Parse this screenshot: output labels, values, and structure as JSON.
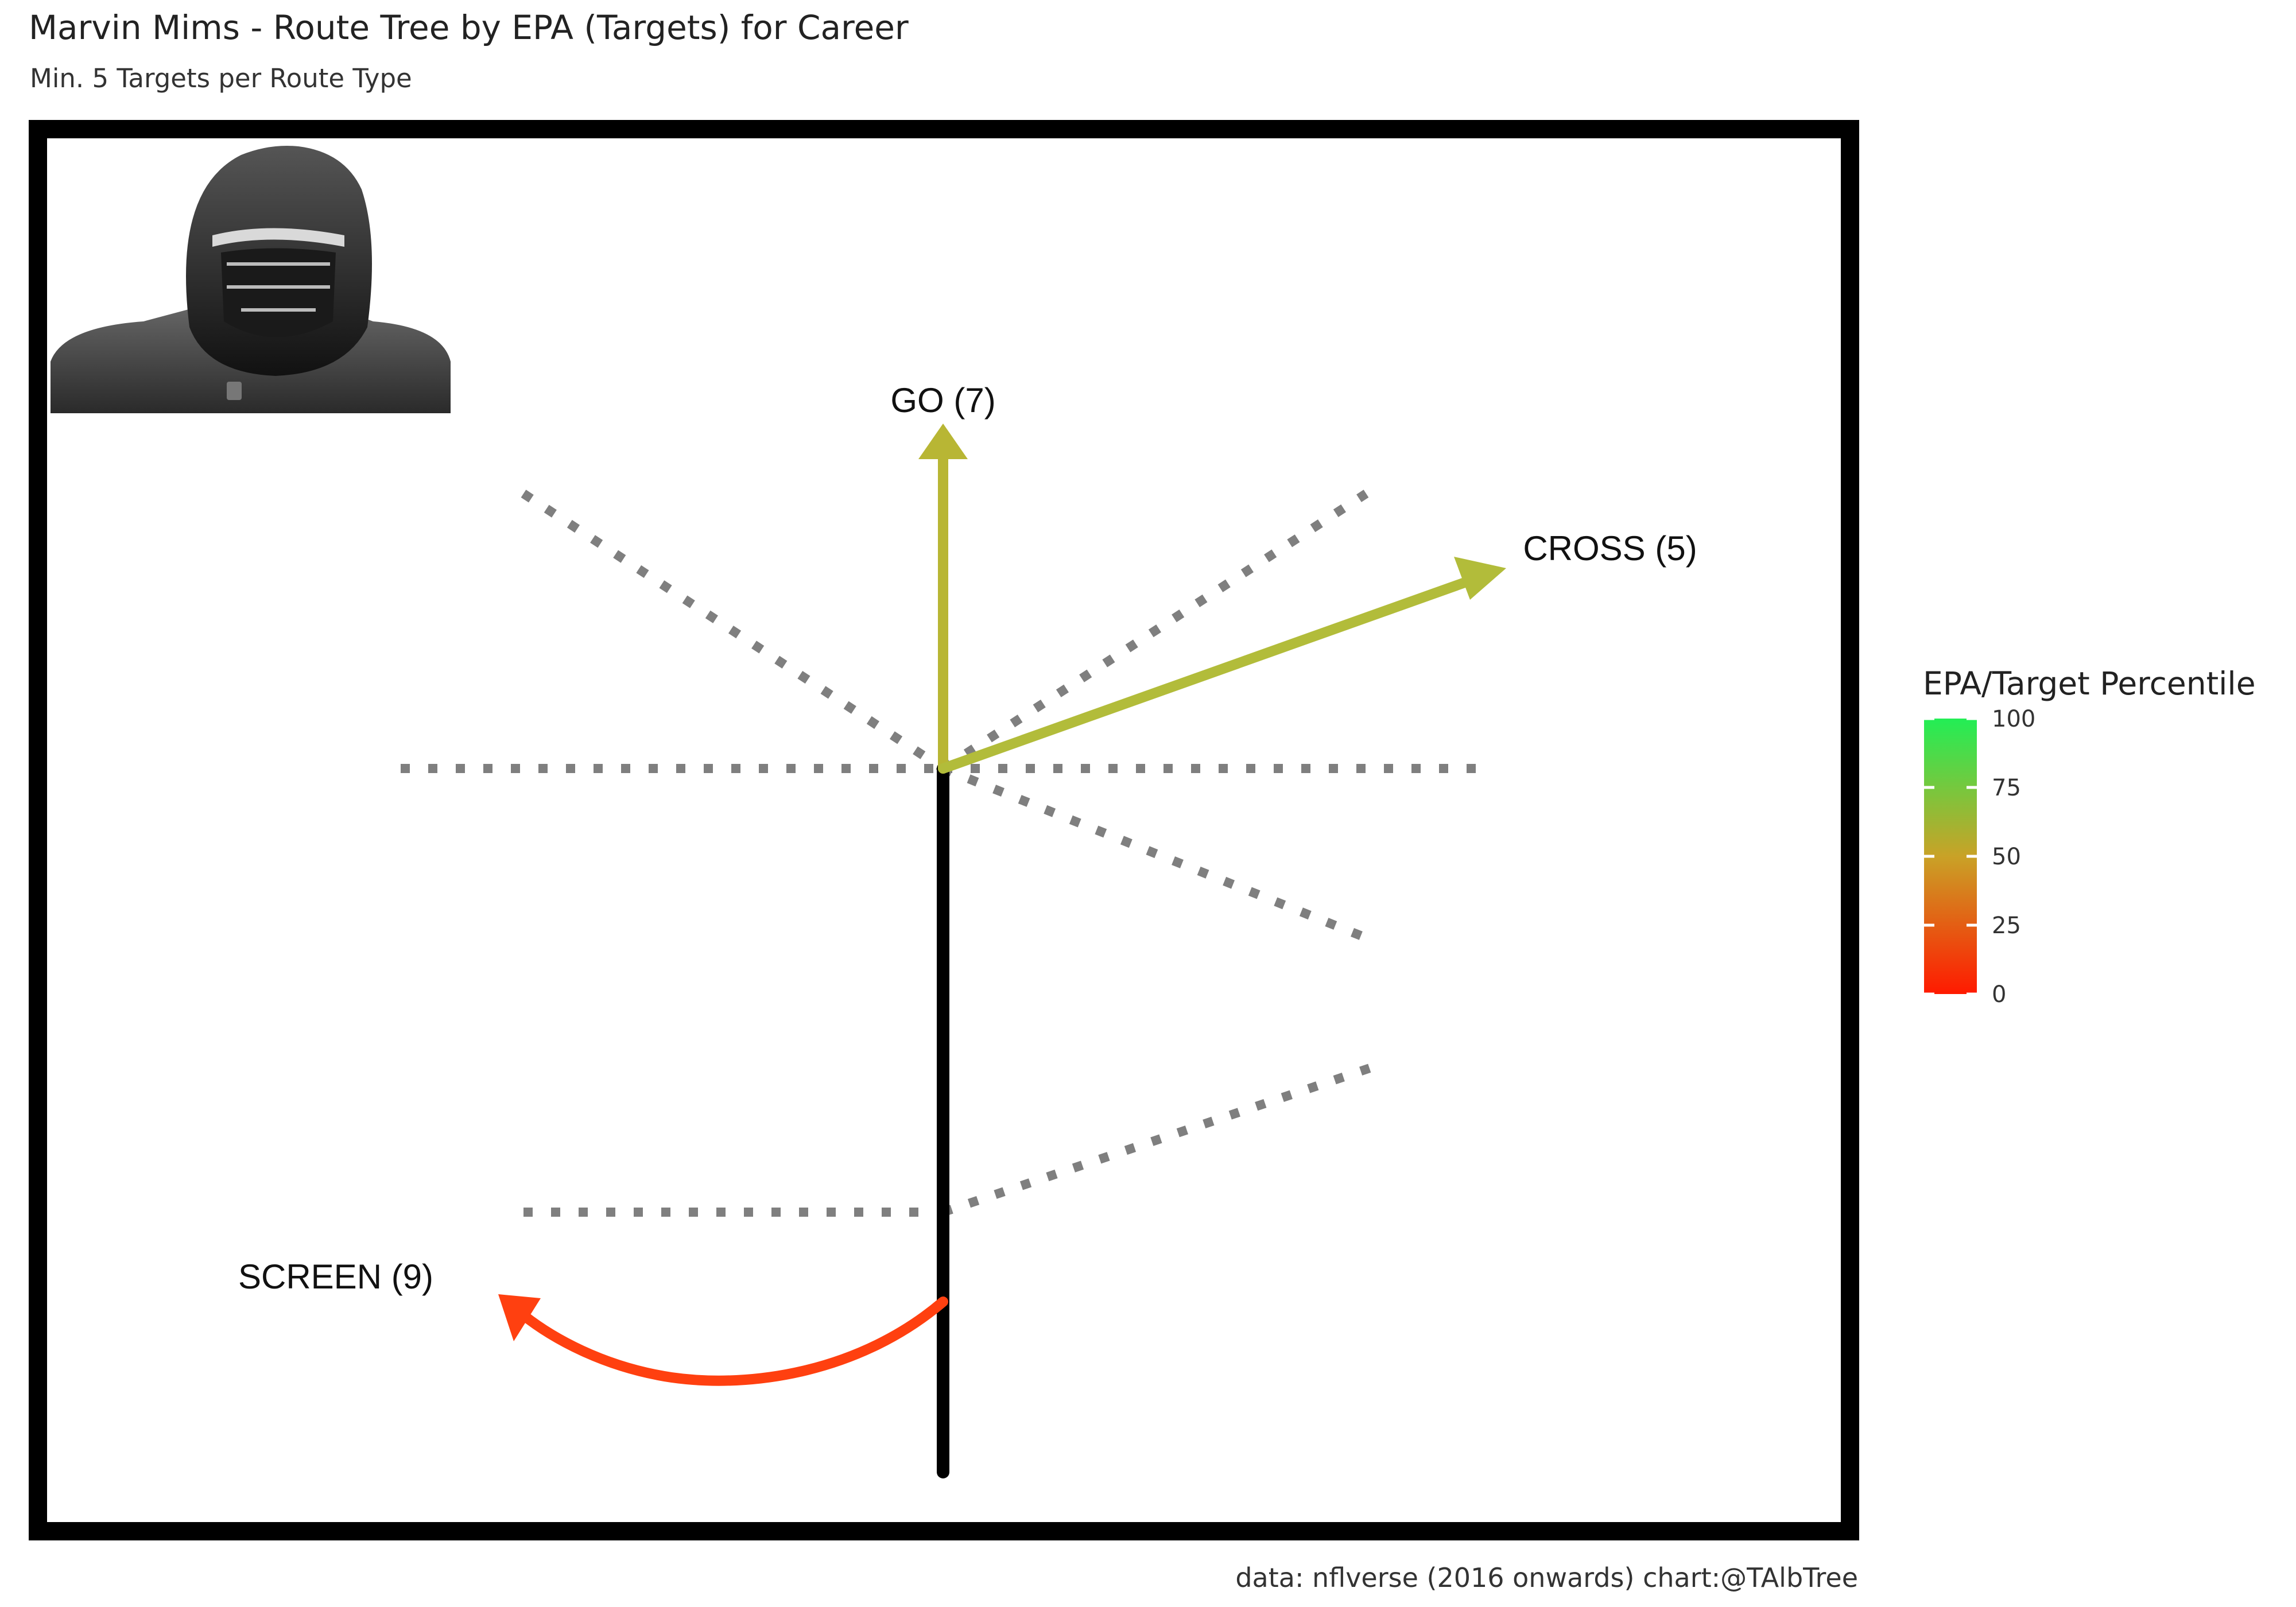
{
  "title": "Marvin Mims - Route Tree by EPA (Targets) for Career",
  "subtitle": "Min. 5 Targets per Route Type",
  "caption": "data: nflverse (2016 onwards)  chart:@TAlbTree",
  "player_image": "player-headshot",
  "colors": {
    "frame": "#000000",
    "stem": "#000000",
    "template_routes": "#7f7f7f",
    "scale_low": "#ff1a00",
    "scale_mid": "#c9a227",
    "scale_high": "#22ee55"
  },
  "chart_data": {
    "type": "route-tree",
    "legend": {
      "title": "EPA/Target Percentile",
      "ticks": [
        100,
        75,
        50,
        25,
        0
      ],
      "range": [
        0,
        100
      ],
      "placement": "right"
    },
    "routes": [
      {
        "route": "GO",
        "targets": 7,
        "label": "GO (7)",
        "color": "#b8b634"
      },
      {
        "route": "CROSS",
        "targets": 5,
        "label": "CROSS (5)",
        "color": "#b2bc3a"
      },
      {
        "route": "SCREEN",
        "targets": 9,
        "label": "SCREEN (9)",
        "color": "#ff4010"
      }
    ]
  }
}
